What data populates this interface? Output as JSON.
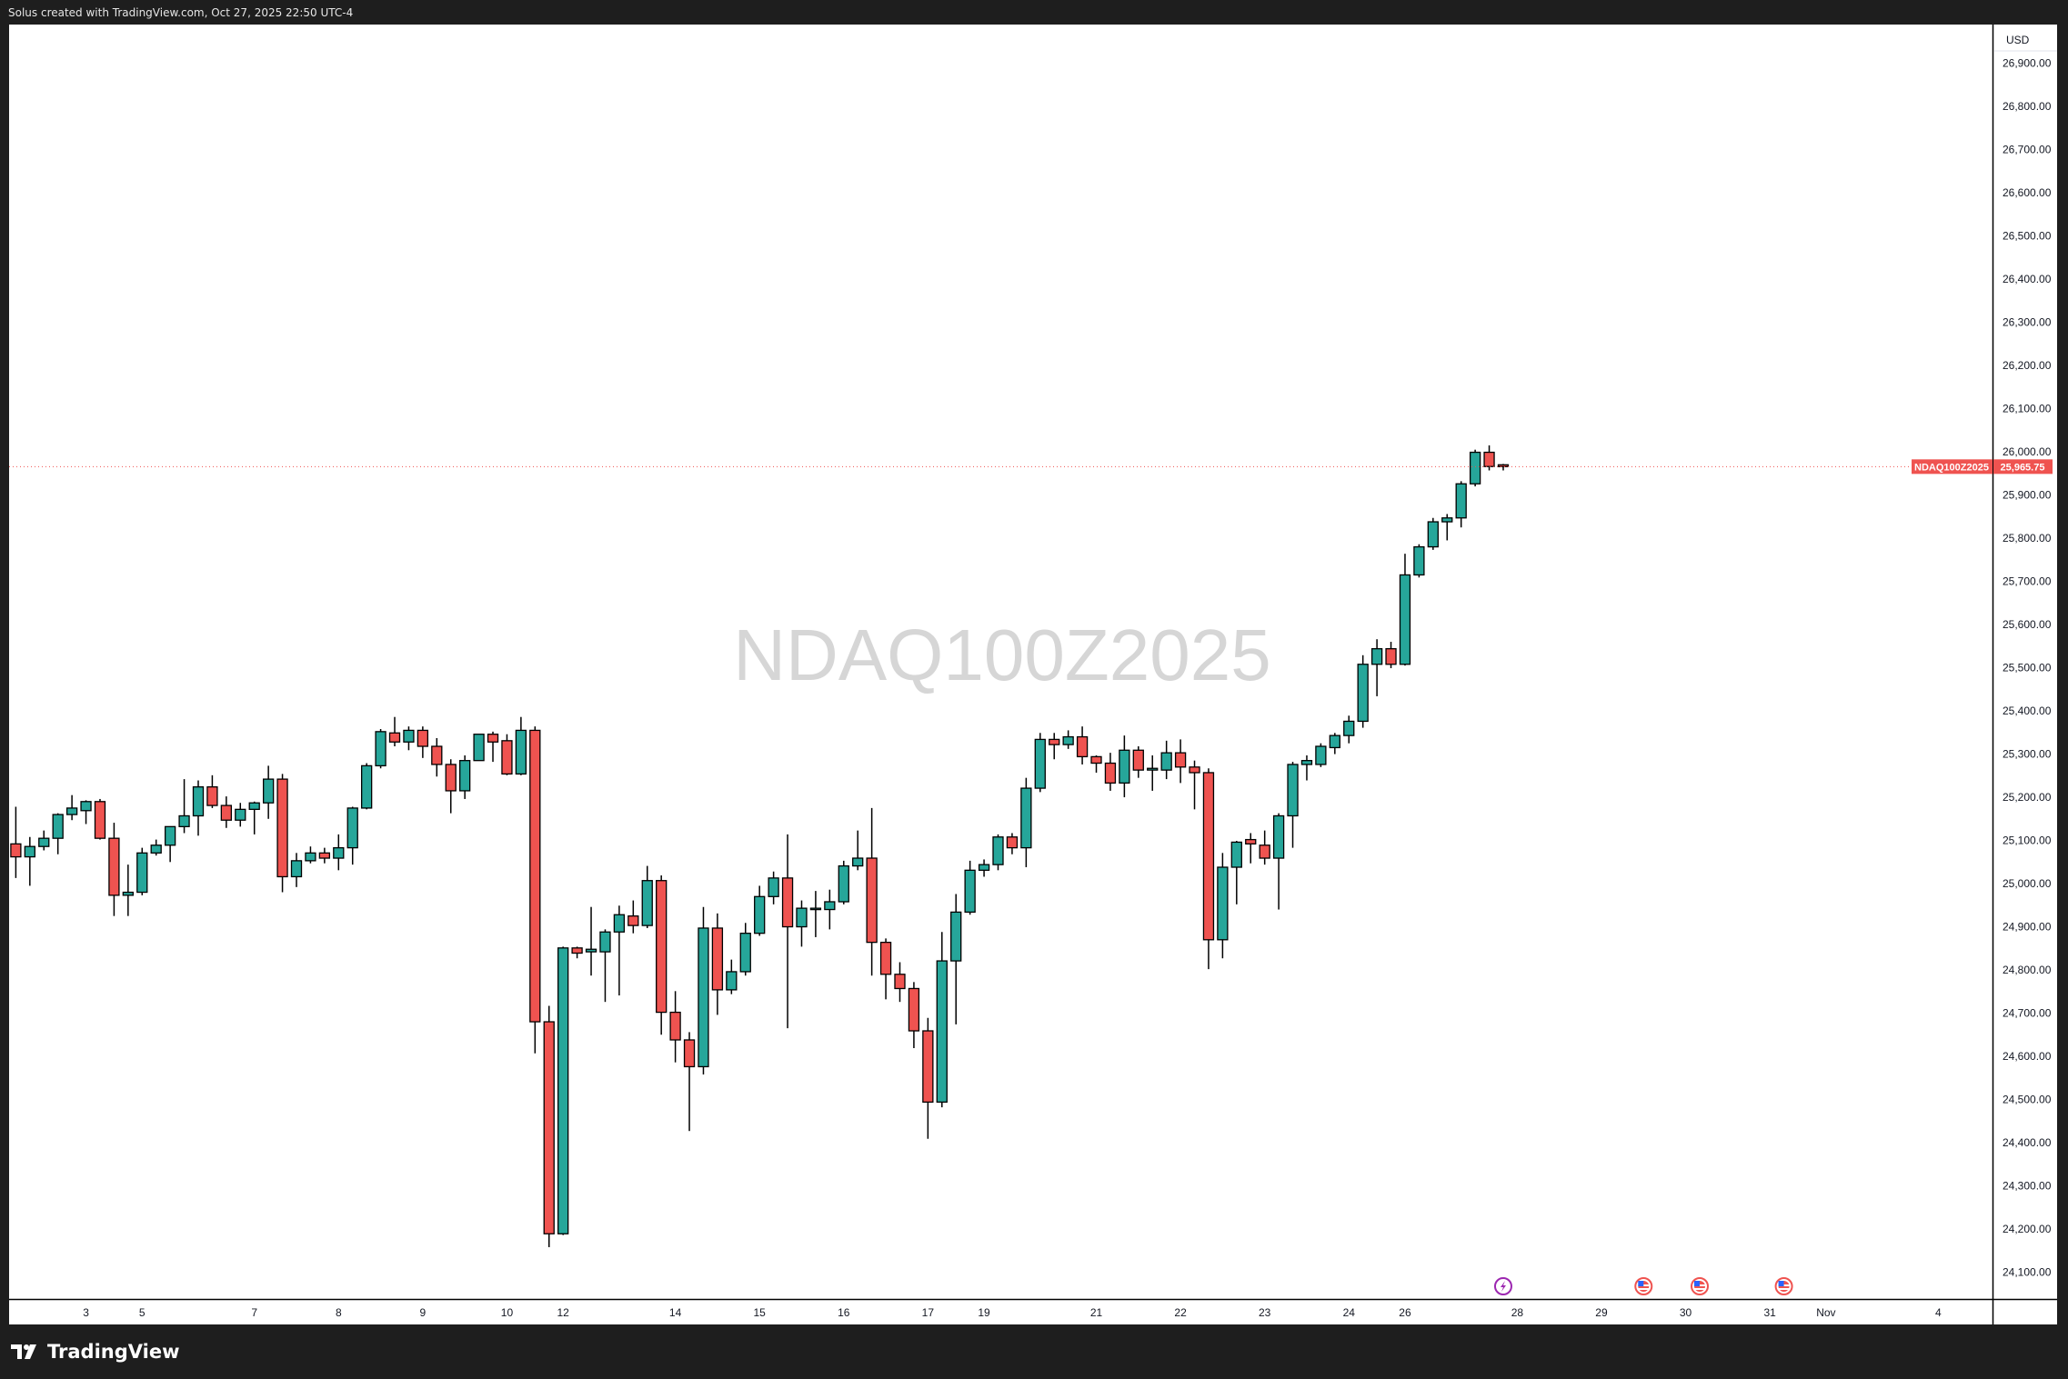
{
  "header": {
    "text": "Solus created with TradingView.com, Oct 27, 2025 22:50 UTC-4"
  },
  "footer": {
    "logo_text": "TradingView"
  },
  "colors": {
    "up": "#26a69a",
    "down": "#ef5350",
    "outline": "#000000",
    "price_label": "#ef5350",
    "watermark": "#d6d6d6"
  },
  "chart_data": {
    "type": "candlestick",
    "symbol": "NDAQ100Z2025",
    "watermark": "NDAQ100Z2025",
    "currency": "USD",
    "last_price": "25,965.75",
    "last_price_value": 25965.75,
    "ylim": [
      24050,
      26950
    ],
    "y_ticks": [
      "24,100.00",
      "24,200.00",
      "24,300.00",
      "24,400.00",
      "24,500.00",
      "24,600.00",
      "24,700.00",
      "24,800.00",
      "24,900.00",
      "25,000.00",
      "25,100.00",
      "25,200.00",
      "25,300.00",
      "25,400.00",
      "25,500.00",
      "25,600.00",
      "25,700.00",
      "25,800.00",
      "25,900.00",
      "26,000.00",
      "26,100.00",
      "26,200.00",
      "26,300.00",
      "26,400.00",
      "26,500.00",
      "26,600.00",
      "26,700.00",
      "26,800.00",
      "26,900.00"
    ],
    "y_tick_values": [
      24100,
      24200,
      24300,
      24400,
      24500,
      24600,
      24700,
      24800,
      24900,
      25000,
      25100,
      25200,
      25300,
      25400,
      25500,
      25600,
      25700,
      25800,
      25900,
      26000,
      26100,
      26200,
      26300,
      26400,
      26500,
      26600,
      26700,
      26800,
      26900
    ],
    "x_ticks": [
      {
        "label": "3",
        "bar": 5
      },
      {
        "label": "5",
        "bar": 9
      },
      {
        "label": "7",
        "bar": 17
      },
      {
        "label": "8",
        "bar": 23
      },
      {
        "label": "9",
        "bar": 29
      },
      {
        "label": "10",
        "bar": 35
      },
      {
        "label": "12",
        "bar": 39
      },
      {
        "label": "14",
        "bar": 47
      },
      {
        "label": "15",
        "bar": 53
      },
      {
        "label": "16",
        "bar": 59
      },
      {
        "label": "17",
        "bar": 65
      },
      {
        "label": "19",
        "bar": 69
      },
      {
        "label": "21",
        "bar": 77
      },
      {
        "label": "22",
        "bar": 83
      },
      {
        "label": "23",
        "bar": 89
      },
      {
        "label": "24",
        "bar": 95
      },
      {
        "label": "26",
        "bar": 99
      },
      {
        "label": "28",
        "bar": 107
      },
      {
        "label": "29",
        "bar": 113
      },
      {
        "label": "30",
        "bar": 119
      },
      {
        "label": "31",
        "bar": 125
      },
      {
        "label": "Nov",
        "bar": 129
      },
      {
        "label": "4",
        "bar": 137
      }
    ],
    "events": [
      {
        "type": "earnings-lightning",
        "bar": 106
      },
      {
        "type": "us-economic-flag",
        "bar": 116
      },
      {
        "type": "us-economic-flag",
        "bar": 120
      },
      {
        "type": "us-economic-flag",
        "bar": 126
      }
    ],
    "ohlc_fields": [
      "open",
      "high",
      "low",
      "close"
    ],
    "candles": [
      [
        25092,
        25178,
        25013,
        25062
      ],
      [
        25062,
        25108,
        24995,
        25086
      ],
      [
        25086,
        25123,
        25077,
        25105
      ],
      [
        25105,
        25163,
        25068,
        25160
      ],
      [
        25160,
        25205,
        25147,
        25175
      ],
      [
        25169,
        25193,
        25138,
        25190
      ],
      [
        25190,
        25196,
        25102,
        25105
      ],
      [
        25105,
        25141,
        24925,
        24973
      ],
      [
        24973,
        25044,
        24925,
        24980
      ],
      [
        24980,
        25083,
        24973,
        25071
      ],
      [
        25071,
        25102,
        25065,
        25089
      ],
      [
        25089,
        25132,
        25050,
        25132
      ],
      [
        25132,
        25242,
        25117,
        25157
      ],
      [
        25157,
        25239,
        25111,
        25224
      ],
      [
        25224,
        25251,
        25175,
        25181
      ],
      [
        25181,
        25202,
        25129,
        25147
      ],
      [
        25147,
        25187,
        25132,
        25172
      ],
      [
        25172,
        25190,
        25114,
        25187
      ],
      [
        25187,
        25273,
        25150,
        25242
      ],
      [
        25242,
        25254,
        24980,
        25016
      ],
      [
        25016,
        25071,
        24992,
        25053
      ],
      [
        25053,
        25086,
        25047,
        25071
      ],
      [
        25071,
        25083,
        25047,
        25059
      ],
      [
        25059,
        25114,
        25031,
        25083
      ],
      [
        25083,
        25178,
        25044,
        25175
      ],
      [
        25175,
        25279,
        25172,
        25273
      ],
      [
        25273,
        25358,
        25267,
        25352
      ],
      [
        25349,
        25386,
        25318,
        25328
      ],
      [
        25328,
        25364,
        25309,
        25355
      ],
      [
        25355,
        25364,
        25291,
        25318
      ],
      [
        25318,
        25337,
        25248,
        25276
      ],
      [
        25276,
        25288,
        25163,
        25215
      ],
      [
        25215,
        25297,
        25196,
        25285
      ],
      [
        25285,
        25346,
        25285,
        25346
      ],
      [
        25346,
        25352,
        25282,
        25328
      ],
      [
        25331,
        25346,
        25251,
        25254
      ],
      [
        25254,
        25386,
        25251,
        25355
      ],
      [
        25355,
        25364,
        24607,
        24680
      ],
      [
        24680,
        24717,
        24158,
        24189
      ],
      [
        24189,
        24854,
        24186,
        24851
      ],
      [
        24851,
        24854,
        24827,
        24839
      ],
      [
        24842,
        24946,
        24787,
        24848
      ],
      [
        24842,
        24894,
        24726,
        24888
      ],
      [
        24888,
        24949,
        24741,
        24928
      ],
      [
        24925,
        24961,
        24885,
        24903
      ],
      [
        24903,
        25041,
        24897,
        25007
      ],
      [
        25007,
        25019,
        24650,
        24702
      ],
      [
        24702,
        24751,
        24586,
        24638
      ],
      [
        24638,
        24656,
        24427,
        24576
      ],
      [
        24576,
        24946,
        24558,
        24897
      ],
      [
        24897,
        24931,
        24696,
        24754
      ],
      [
        24754,
        24824,
        24744,
        24796
      ],
      [
        24796,
        24909,
        24787,
        24885
      ],
      [
        24885,
        24995,
        24879,
        24970
      ],
      [
        24970,
        25028,
        24952,
        25013
      ],
      [
        25013,
        25114,
        24665,
        24900
      ],
      [
        24900,
        24961,
        24854,
        24943
      ],
      [
        24940,
        24983,
        24876,
        24943
      ],
      [
        24940,
        24986,
        24894,
        24958
      ],
      [
        24958,
        25053,
        24952,
        25041
      ],
      [
        25041,
        25123,
        25031,
        25059
      ],
      [
        25059,
        25175,
        24787,
        24864
      ],
      [
        24864,
        24873,
        24732,
        24790
      ],
      [
        24790,
        24818,
        24726,
        24757
      ],
      [
        24757,
        24772,
        24619,
        24659
      ],
      [
        24659,
        24689,
        24409,
        24494
      ],
      [
        24494,
        24888,
        24482,
        24821
      ],
      [
        24821,
        24976,
        24674,
        24934
      ],
      [
        24934,
        25053,
        24928,
        25031
      ],
      [
        25031,
        25056,
        25016,
        25044
      ],
      [
        25044,
        25114,
        25031,
        25108
      ],
      [
        25108,
        25117,
        25068,
        25083
      ],
      [
        25083,
        25245,
        25038,
        25221
      ],
      [
        25221,
        25349,
        25212,
        25334
      ],
      [
        25334,
        25349,
        25288,
        25322
      ],
      [
        25322,
        25355,
        25312,
        25340
      ],
      [
        25340,
        25364,
        25276,
        25294
      ],
      [
        25294,
        25297,
        25257,
        25279
      ],
      [
        25279,
        25303,
        25215,
        25233
      ],
      [
        25233,
        25343,
        25200,
        25309
      ],
      [
        25309,
        25318,
        25245,
        25263
      ],
      [
        25263,
        25297,
        25215,
        25267
      ],
      [
        25263,
        25331,
        25242,
        25303
      ],
      [
        25303,
        25334,
        25233,
        25270
      ],
      [
        25270,
        25285,
        25172,
        25257
      ],
      [
        25257,
        25267,
        24802,
        24870
      ],
      [
        24870,
        25071,
        24827,
        25038
      ],
      [
        25038,
        25099,
        24952,
        25096
      ],
      [
        25102,
        25117,
        25047,
        25092
      ],
      [
        25089,
        25123,
        25044,
        25059
      ],
      [
        25059,
        25163,
        24940,
        25157
      ],
      [
        25157,
        25282,
        25083,
        25276
      ],
      [
        25276,
        25297,
        25239,
        25285
      ],
      [
        25276,
        25325,
        25270,
        25318
      ],
      [
        25315,
        25349,
        25300,
        25343
      ],
      [
        25343,
        25389,
        25325,
        25376
      ],
      [
        25376,
        25529,
        25361,
        25508
      ],
      [
        25508,
        25566,
        25434,
        25544
      ],
      [
        25544,
        25560,
        25499,
        25508
      ],
      [
        25508,
        25764,
        25505,
        25715
      ],
      [
        25715,
        25786,
        25709,
        25780
      ],
      [
        25780,
        25847,
        25773,
        25838
      ],
      [
        25838,
        25856,
        25795,
        25847
      ],
      [
        25847,
        25932,
        25825,
        25926
      ],
      [
        25926,
        26005,
        25920,
        25999
      ],
      [
        25999,
        26015,
        25957,
        25966
      ],
      [
        25970,
        25972,
        25957,
        25965.75
      ]
    ]
  }
}
